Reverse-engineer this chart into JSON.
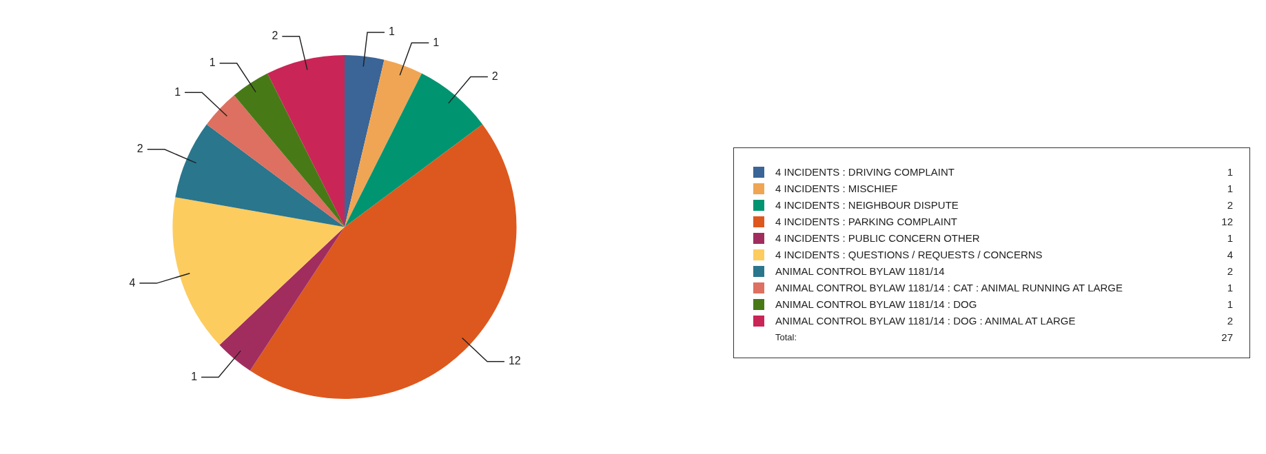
{
  "chart_data": {
    "type": "pie",
    "categories": [
      "4 INCIDENTS : DRIVING COMPLAINT",
      "4 INCIDENTS : MISCHIEF",
      "4 INCIDENTS : NEIGHBOUR DISPUTE",
      "4 INCIDENTS : PARKING COMPLAINT",
      "4 INCIDENTS : PUBLIC CONCERN OTHER",
      "4 INCIDENTS : QUESTIONS / REQUESTS / CONCERNS",
      "ANIMAL CONTROL BYLAW 1181/14",
      "ANIMAL CONTROL BYLAW 1181/14 : CAT : ANIMAL RUNNING AT LARGE",
      "ANIMAL CONTROL BYLAW 1181/14 : DOG",
      "ANIMAL CONTROL BYLAW 1181/14 : DOG : ANIMAL AT LARGE"
    ],
    "values": [
      1,
      1,
      2,
      12,
      1,
      4,
      2,
      1,
      1,
      2
    ],
    "colors": [
      "#3a6596",
      "#f0a554",
      "#009471",
      "#dd581e",
      "#a12d5f",
      "#fdcc5f",
      "#2a768d",
      "#dd7060",
      "#477a16",
      "#c92556"
    ],
    "value_labels": [
      "1",
      "1",
      "2",
      "12",
      "1",
      "4",
      "2",
      "1",
      "1",
      "2"
    ],
    "legend": "right",
    "annotations": [
      "Total:"
    ],
    "totals": [
      "27"
    ]
  }
}
